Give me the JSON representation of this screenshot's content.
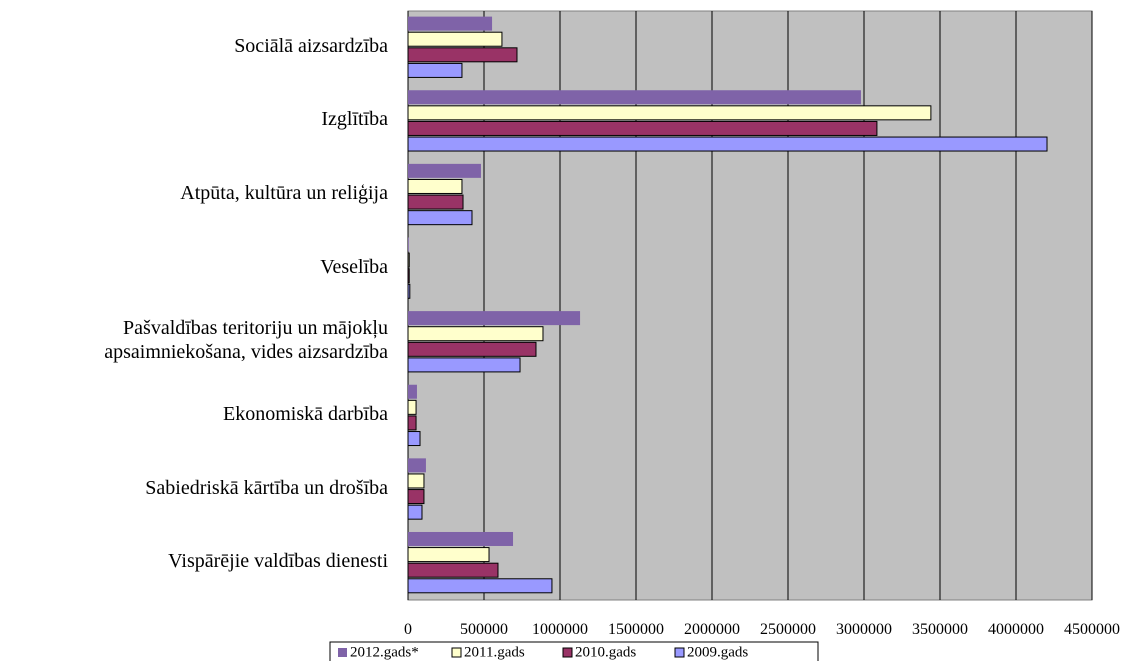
{
  "chart_data": {
    "type": "barh",
    "categories": [
      "Sociālā aizsardzība",
      "Izglītība",
      "Atpūta, kultūra un reliģija",
      "Veselība",
      "Pašvaldības teritoriju un mājokļu apsaimniekošana, vides aizsardzība",
      "Ekonomiskā darbība",
      "Sabiedriskā kārtība un drošība",
      "Vispārējie valdības dienesti"
    ],
    "series": [
      {
        "name": "2012.gads*",
        "color": "#7f63a8",
        "values": [
          553000,
          2980000,
          480000,
          5000,
          1132000,
          59000,
          118000,
          691000
        ]
      },
      {
        "name": "2011.gads",
        "color": "#ffffcc",
        "values": [
          618000,
          3440000,
          355000,
          8000,
          888000,
          53000,
          105000,
          533000
        ]
      },
      {
        "name": "2010.gads",
        "color": "#993366",
        "values": [
          717000,
          3085000,
          362000,
          8000,
          842000,
          53000,
          105000,
          592000
        ]
      },
      {
        "name": "2009.gads",
        "color": "#9999ff",
        "values": [
          355000,
          4204000,
          421000,
          12000,
          737000,
          79000,
          92000,
          947000
        ]
      }
    ],
    "xlim": [
      0,
      4500000
    ],
    "xticks": [
      0,
      500000,
      1000000,
      1500000,
      2000000,
      2500000,
      3000000,
      3500000,
      4000000,
      4500000
    ],
    "grid": true,
    "legend": "bottom"
  }
}
